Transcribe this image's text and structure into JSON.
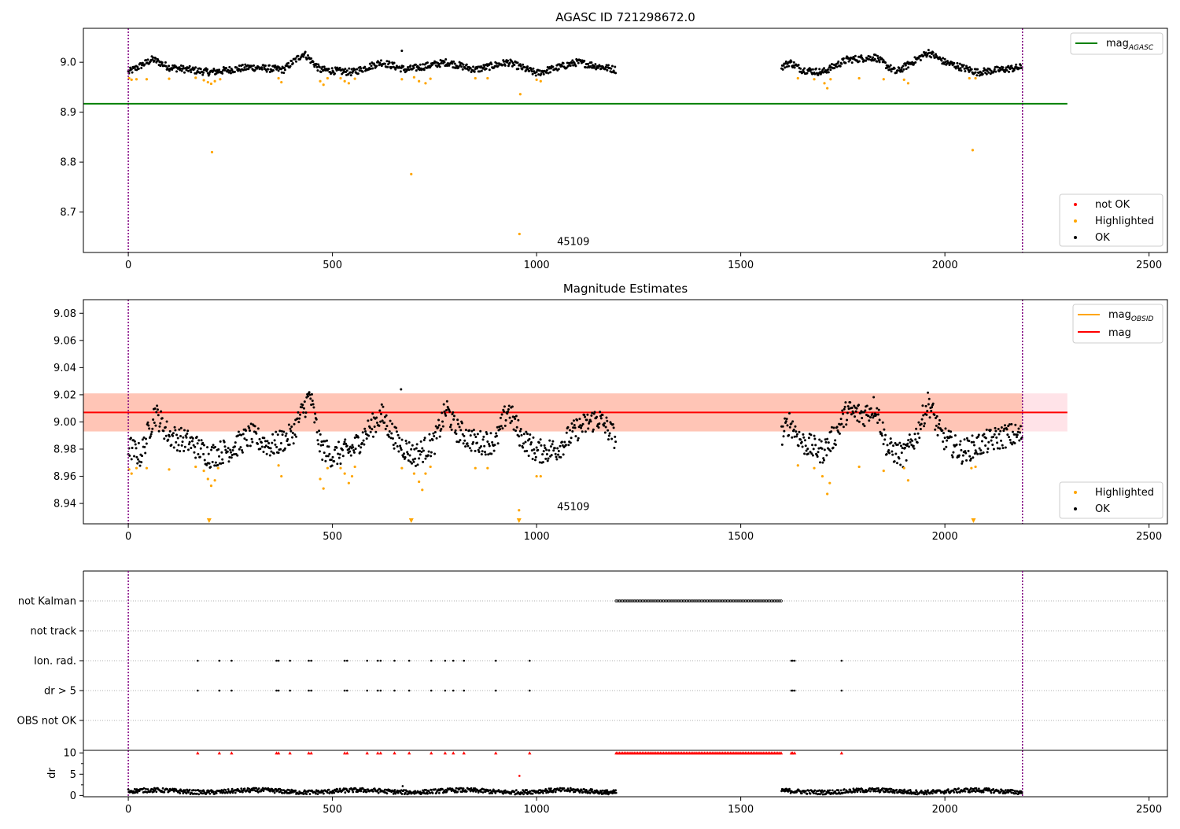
{
  "figure": {
    "colors": {
      "ok": "#000000",
      "highlighted": "#ffa500",
      "not_ok": "#ff0000",
      "agasc_line": "#008000",
      "mag_line": "#ff0000",
      "band_outer": "#ffc0cb",
      "band_inner": "#ffa07a",
      "vline": "#800080",
      "grid": "#b0b0b0"
    }
  },
  "chart_data": [
    {
      "type": "scatter",
      "title": "AGASC ID 721298672.0",
      "xlim": [
        -110,
        2545
      ],
      "ylim": [
        8.619,
        9.068
      ],
      "xticks": [
        0,
        500,
        1000,
        1500,
        2000,
        2500
      ],
      "yticks": [
        8.7,
        8.8,
        8.9,
        9.0
      ],
      "ytick_labels": [
        "8.7",
        "8.8",
        "8.9",
        "9.0"
      ],
      "vlines": [
        0,
        2190
      ],
      "hline": {
        "name_main": "mag",
        "name_sub": "AGASC",
        "y": 8.917,
        "xmin": -110,
        "xmax": 2300
      },
      "annotation": {
        "text": "45109",
        "x": 1050,
        "y": 8.64
      },
      "legend_top": {
        "placement": "upper-right"
      },
      "legend_bottom": {
        "placement": "lower-right",
        "entries": [
          {
            "label": "not OK",
            "color": "#ff0000"
          },
          {
            "label": "Highlighted",
            "color": "#ffa500"
          },
          {
            "label": "OK",
            "color": "#000000"
          }
        ]
      },
      "series": [
        {
          "name": "OK",
          "segments": [
            {
              "x0": 0,
              "x1": 1195,
              "base": 8.985,
              "knots": [
                [
                  0,
                  8.98
                ],
                [
                  60,
                  9.006
                ],
                [
                  100,
                  8.99
                ],
                [
                  200,
                  8.98
                ],
                [
                  300,
                  8.99
                ],
                [
                  380,
                  8.985
                ],
                [
                  430,
                  9.018
                ],
                [
                  470,
                  8.985
                ],
                [
                  550,
                  8.98
                ],
                [
                  620,
                  9.0
                ],
                [
                  680,
                  8.985
                ],
                [
                  780,
                  9.0
                ],
                [
                  850,
                  8.985
                ],
                [
                  930,
                  9.0
                ],
                [
                  1000,
                  8.978
                ],
                [
                  1100,
                  9.0
                ],
                [
                  1195,
                  8.985
                ]
              ]
            },
            {
              "x0": 1600,
              "x1": 2190,
              "base": 8.985,
              "knots": [
                [
                  1600,
                  8.99
                ],
                [
                  1620,
                  9.0
                ],
                [
                  1650,
                  8.985
                ],
                [
                  1700,
                  8.98
                ],
                [
                  1760,
                  9.005
                ],
                [
                  1830,
                  9.01
                ],
                [
                  1880,
                  8.98
                ],
                [
                  1960,
                  9.02
                ],
                [
                  2000,
                  9.0
                ],
                [
                  2080,
                  8.98
                ],
                [
                  2190,
                  8.99
                ]
              ]
            }
          ],
          "outliers": [
            [
              670,
              9.023
            ]
          ]
        },
        {
          "name": "Highlighted",
          "points": [
            [
              2,
              8.968
            ],
            [
              8,
              8.965
            ],
            [
              20,
              8.966
            ],
            [
              45,
              8.966
            ],
            [
              100,
              8.967
            ],
            [
              165,
              8.969
            ],
            [
              185,
              8.964
            ],
            [
              195,
              8.96
            ],
            [
              203,
              8.957
            ],
            [
              212,
              8.962
            ],
            [
              225,
              8.966
            ],
            [
              368,
              8.968
            ],
            [
              375,
              8.96
            ],
            [
              470,
              8.962
            ],
            [
              478,
              8.955
            ],
            [
              488,
              8.968
            ],
            [
              520,
              8.968
            ],
            [
              530,
              8.962
            ],
            [
              540,
              8.958
            ],
            [
              555,
              8.967
            ],
            [
              670,
              8.966
            ],
            [
              700,
              8.97
            ],
            [
              712,
              8.962
            ],
            [
              728,
              8.958
            ],
            [
              740,
              8.967
            ],
            [
              850,
              8.968
            ],
            [
              880,
              8.968
            ],
            [
              960,
              8.936
            ],
            [
              1000,
              8.965
            ],
            [
              1010,
              8.962
            ],
            [
              1640,
              8.968
            ],
            [
              1680,
              8.966
            ],
            [
              1705,
              8.958
            ],
            [
              1712,
              8.948
            ],
            [
              1720,
              8.966
            ],
            [
              1790,
              8.968
            ],
            [
              1850,
              8.966
            ],
            [
              1900,
              8.965
            ],
            [
              1910,
              8.958
            ],
            [
              2060,
              8.968
            ],
            [
              2075,
              8.968
            ],
            [
              205,
              8.82
            ],
            [
              693,
              8.776
            ],
            [
              958,
              8.656
            ],
            [
              2068,
              8.824
            ]
          ]
        }
      ]
    },
    {
      "type": "scatter",
      "title": "Magnitude Estimates",
      "xlim": [
        -110,
        2545
      ],
      "ylim": [
        8.925,
        9.09
      ],
      "xticks": [
        0,
        500,
        1000,
        1500,
        2000,
        2500
      ],
      "yticks": [
        8.94,
        8.96,
        8.98,
        9.0,
        9.02,
        9.04,
        9.06,
        9.08
      ],
      "ytick_labels": [
        "8.94",
        "8.96",
        "8.98",
        "9.00",
        "9.02",
        "9.04",
        "9.06",
        "9.08"
      ],
      "vlines": [
        0,
        2190
      ],
      "mag_line": {
        "y": 9.007,
        "xmin": -110,
        "xmax": 2300
      },
      "outer_band": [
        8.993,
        9.021
      ],
      "inner_band": {
        "y0": 8.993,
        "y1": 9.021,
        "x0": -110,
        "x1": 2190
      },
      "annotation": {
        "text": "45109",
        "x": 1050,
        "y": 8.93
      },
      "legend_top": {
        "placement": "upper-right",
        "entries": [
          {
            "name_main": "mag",
            "name_sub": "OBSID",
            "color": "#ffa500"
          },
          {
            "name_main": "mag",
            "name_sub": "",
            "color": "#ff0000"
          }
        ]
      },
      "legend_bottom": {
        "placement": "lower-right",
        "entries": [
          {
            "label": "Highlighted",
            "color": "#ffa500"
          },
          {
            "label": "OK",
            "color": "#000000"
          }
        ]
      },
      "series": [
        {
          "name": "OK",
          "segments": [
            {
              "x0": 0,
              "x1": 1195,
              "knots": [
                [
                  0,
                  8.982
                ],
                [
                  30,
                  8.975
                ],
                [
                  65,
                  9.007
                ],
                [
                  100,
                  8.99
                ],
                [
                  150,
                  8.985
                ],
                [
                  200,
                  8.975
                ],
                [
                  250,
                  8.98
                ],
                [
                  300,
                  8.99
                ],
                [
                  350,
                  8.982
                ],
                [
                  400,
                  8.99
                ],
                [
                  430,
                  9.01
                ],
                [
                  445,
                  9.02
                ],
                [
                  470,
                  8.982
                ],
                [
                  500,
                  8.975
                ],
                [
                  550,
                  8.98
                ],
                [
                  600,
                  8.998
                ],
                [
                  620,
                  9.005
                ],
                [
                  660,
                  8.985
                ],
                [
                  700,
                  8.975
                ],
                [
                  750,
                  8.985
                ],
                [
                  780,
                  9.01
                ],
                [
                  800,
                  8.995
                ],
                [
                  850,
                  8.985
                ],
                [
                  900,
                  8.985
                ],
                [
                  930,
                  9.01
                ],
                [
                  960,
                  8.99
                ],
                [
                  1000,
                  8.978
                ],
                [
                  1050,
                  8.98
                ],
                [
                  1100,
                  8.995
                ],
                [
                  1150,
                  9.003
                ],
                [
                  1195,
                  8.988
                ]
              ]
            },
            {
              "x0": 1600,
              "x1": 2190,
              "knots": [
                [
                  1600,
                  8.99
                ],
                [
                  1620,
                  9.0
                ],
                [
                  1650,
                  8.985
                ],
                [
                  1700,
                  8.978
                ],
                [
                  1730,
                  8.99
                ],
                [
                  1760,
                  9.008
                ],
                [
                  1800,
                  9.005
                ],
                [
                  1830,
                  9.012
                ],
                [
                  1860,
                  8.98
                ],
                [
                  1900,
                  8.975
                ],
                [
                  1930,
                  8.99
                ],
                [
                  1960,
                  9.015
                ],
                [
                  1990,
                  8.99
                ],
                [
                  2040,
                  8.978
                ],
                [
                  2100,
                  8.985
                ],
                [
                  2150,
                  8.99
                ],
                [
                  2190,
                  8.99
                ]
              ]
            }
          ],
          "outliers": [
            [
              668,
              9.024
            ]
          ]
        },
        {
          "name": "Highlighted",
          "points": [
            [
              2,
              8.965
            ],
            [
              8,
              8.962
            ],
            [
              20,
              8.966
            ],
            [
              45,
              8.966
            ],
            [
              100,
              8.965
            ],
            [
              165,
              8.967
            ],
            [
              185,
              8.964
            ],
            [
              195,
              8.958
            ],
            [
              203,
              8.953
            ],
            [
              212,
              8.957
            ],
            [
              220,
              8.966
            ],
            [
              368,
              8.968
            ],
            [
              375,
              8.96
            ],
            [
              470,
              8.958
            ],
            [
              478,
              8.951
            ],
            [
              488,
              8.966
            ],
            [
              520,
              8.966
            ],
            [
              530,
              8.962
            ],
            [
              540,
              8.955
            ],
            [
              548,
              8.96
            ],
            [
              555,
              8.967
            ],
            [
              670,
              8.966
            ],
            [
              700,
              8.962
            ],
            [
              712,
              8.956
            ],
            [
              720,
              8.95
            ],
            [
              728,
              8.962
            ],
            [
              740,
              8.967
            ],
            [
              850,
              8.966
            ],
            [
              880,
              8.966
            ],
            [
              957,
              8.935
            ],
            [
              1000,
              8.96
            ],
            [
              1010,
              8.96
            ],
            [
              1640,
              8.968
            ],
            [
              1680,
              8.966
            ],
            [
              1700,
              8.96
            ],
            [
              1712,
              8.947
            ],
            [
              1718,
              8.955
            ],
            [
              1790,
              8.967
            ],
            [
              1850,
              8.964
            ],
            [
              1900,
              8.966
            ],
            [
              1910,
              8.957
            ],
            [
              2065,
              8.966
            ],
            [
              2075,
              8.967
            ]
          ],
          "below_markers": [
            198,
            693,
            957,
            2070
          ]
        }
      ]
    },
    {
      "type": "scatter",
      "xlim": [
        -110,
        2545
      ],
      "xticks": [
        0,
        500,
        1000,
        1500,
        2000,
        2500
      ],
      "vlines": [
        0,
        2190
      ],
      "flags": {
        "categories": [
          "not Kalman",
          "not track",
          "Ion. rad.",
          "dr > 5",
          "OBS not OK"
        ],
        "not_kalman_range": [
          1195,
          1600
        ],
        "ion_rad": [
          170,
          223,
          253,
          363,
          368,
          396,
          442,
          448,
          530,
          536,
          585,
          611,
          618,
          652,
          688,
          742,
          776,
          796,
          822,
          900,
          983,
          1624,
          1627,
          1632,
          1747
        ],
        "dr_gt_5": [
          170,
          223,
          253,
          363,
          368,
          396,
          442,
          448,
          530,
          536,
          585,
          611,
          618,
          652,
          688,
          742,
          776,
          796,
          822,
          900,
          983,
          1624,
          1627,
          1632,
          1747
        ]
      },
      "dr": {
        "ylabel": "dr",
        "yticks": [
          0,
          5,
          10
        ],
        "ytick_labels": [
          "0",
          "5",
          "10"
        ],
        "ylim": [
          -0.3,
          10.6
        ],
        "clipped_markers": [
          170,
          223,
          253,
          363,
          368,
          396,
          442,
          448,
          530,
          536,
          585,
          611,
          618,
          652,
          688,
          742,
          776,
          796,
          822,
          900,
          983,
          1624,
          1627,
          1632,
          1747
        ],
        "clipped_range": [
          1195,
          1600
        ],
        "segments": [
          {
            "x0": 0,
            "x1": 1195,
            "base": 1.0,
            "amp": 0.5
          },
          {
            "x0": 1600,
            "x1": 2190,
            "base": 1.0,
            "amp": 0.5
          }
        ],
        "outliers": [
          [
            672,
            2.2
          ],
          [
            958,
            4.6
          ]
        ]
      }
    }
  ]
}
